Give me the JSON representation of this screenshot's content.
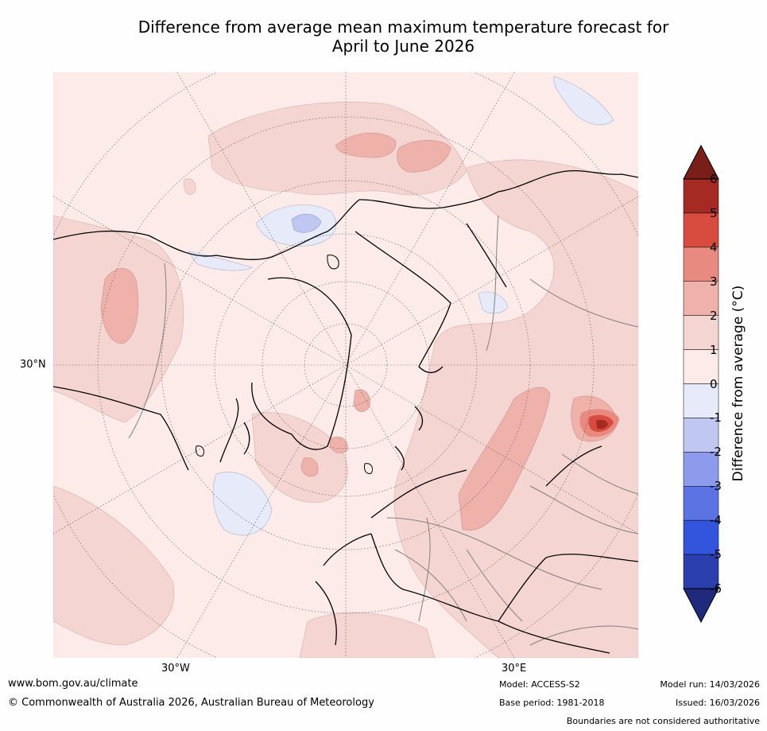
{
  "title": {
    "line1": "Difference from average mean maximum temperature forecast for",
    "line2": "April to June 2026"
  },
  "map": {
    "projection": "north-polar-stereographic",
    "labels": {
      "lat_30n": "30°N",
      "lon_30w": "30°W",
      "lon_30e": "30°E"
    },
    "background_color": "#fcebe8",
    "land_outline_color": "#000000",
    "border_color": "#808080"
  },
  "colorbar": {
    "title": "Difference from average (°C)",
    "ticks": [
      "6",
      "5",
      "4",
      "3",
      "2",
      "1",
      "0",
      "-1",
      "-2",
      "-3",
      "-4",
      "-5",
      "-6"
    ],
    "bins": [
      {
        "from": 5,
        "to": 6,
        "color": "#a52a24"
      },
      {
        "from": 4,
        "to": 5,
        "color": "#d84c40"
      },
      {
        "from": 3,
        "to": 4,
        "color": "#e88a80"
      },
      {
        "from": 2,
        "to": 3,
        "color": "#eeb2ab"
      },
      {
        "from": 1,
        "to": 2,
        "color": "#f5d5d1"
      },
      {
        "from": 0,
        "to": 1,
        "color": "#fcebe8"
      },
      {
        "from": -1,
        "to": 0,
        "color": "#e6eaf9"
      },
      {
        "from": -2,
        "to": -1,
        "color": "#c0c8f2"
      },
      {
        "from": -3,
        "to": -2,
        "color": "#8c9bec"
      },
      {
        "from": -4,
        "to": -3,
        "color": "#5c73e4"
      },
      {
        "from": -5,
        "to": -4,
        "color": "#3354dc"
      },
      {
        "from": -6,
        "to": -5,
        "color": "#2a3eac"
      }
    ],
    "over_color": "#7a1e1a",
    "under_color": "#1f2a7c"
  },
  "footer": {
    "website": "www.bom.gov.au/climate",
    "copyright": "© Commonwealth of Australia 2026, Australian Bureau of Meteorology",
    "model": "Model: ACCESS-S2",
    "base_period": "Base period: 1981-2018",
    "model_run": "Model run: 14/03/2026",
    "issued": "Issued: 16/03/2026",
    "disclaimer": "Boundaries are not considered authoritative"
  }
}
